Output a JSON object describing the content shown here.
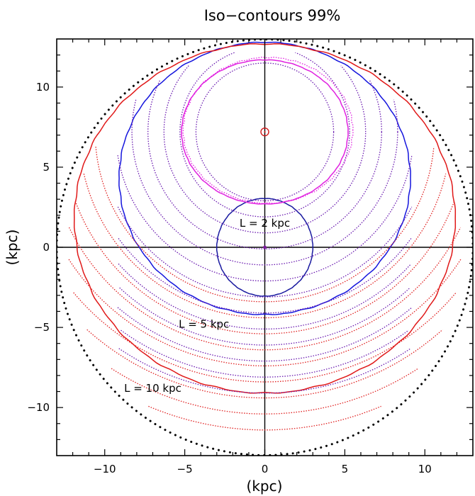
{
  "chart_data": {
    "type": "line",
    "title": "Iso−contours 99%",
    "xlabel": "(kpc)",
    "ylabel": "(kpc)",
    "xlim": [
      -13,
      13
    ],
    "ylim": [
      -13,
      13
    ],
    "x_ticks": [
      -10,
      -5,
      0,
      5,
      10
    ],
    "y_ticks": [
      -10,
      -5,
      0,
      5,
      10
    ],
    "x_tick_labels": [
      "−10",
      "−5",
      "0",
      "5",
      "10"
    ],
    "y_tick_labels": [
      "−10",
      "−5",
      "0",
      "5",
      "10"
    ],
    "grid": false,
    "sun": {
      "x": 0,
      "y": 7.2
    },
    "center": {
      "x": 0,
      "y": 0
    },
    "annotations": [
      {
        "text": "L = 2 kpc",
        "x": 0,
        "y": 1.5
      },
      {
        "text": "L = 5 kpc",
        "x": -3.8,
        "y": -4.8
      },
      {
        "text": "L = 10 kpc",
        "x": -7,
        "y": -8.8
      }
    ],
    "series": [
      {
        "kind": "closed-curve",
        "style": "solid",
        "color": "#1a1aa0",
        "cx": 0,
        "cy": 0,
        "rx": 3.0,
        "ry": 3.05
      },
      {
        "kind": "closed-curve",
        "style": "solid",
        "color": "#1515dd",
        "cx": 0,
        "cy": 4.3,
        "rx": 9.1,
        "ry": 8.5
      },
      {
        "kind": "closed-curve",
        "style": "solid",
        "color": "#e01818",
        "cx": 0,
        "cy": 1.8,
        "rx": 11.9,
        "ry": 10.9
      },
      {
        "kind": "closed-curve",
        "style": "solid",
        "color": "#e020e0",
        "cx": 0,
        "cy": 7.2,
        "rx": 5.2,
        "ry": 4.5
      },
      {
        "kind": "circle",
        "style": "dotted",
        "color": "#000000",
        "cx": 0,
        "cy": 0,
        "r": 13.0
      },
      {
        "kind": "partial-arcs",
        "style": "dotted",
        "color": "#6a1ab0",
        "cy": 7.2,
        "radii": [
          4.3,
          5.3,
          6.3,
          7.3,
          8.3,
          9.3,
          10.3,
          11.3,
          12.3,
          13.3,
          14.3,
          15.3,
          16.3
        ]
      },
      {
        "kind": "partial-arcs",
        "style": "dotted",
        "color": "#e02020",
        "cy": 7.2,
        "radii": [
          10.6,
          11.6,
          12.6,
          13.6,
          14.6,
          15.6,
          16.6,
          17.6,
          18.6
        ]
      },
      {
        "kind": "closed-curve",
        "style": "dotted",
        "color": "#e020e0",
        "cx": 0.2,
        "cy": 7.3,
        "rx": 5.3,
        "ry": 4.55
      }
    ]
  }
}
